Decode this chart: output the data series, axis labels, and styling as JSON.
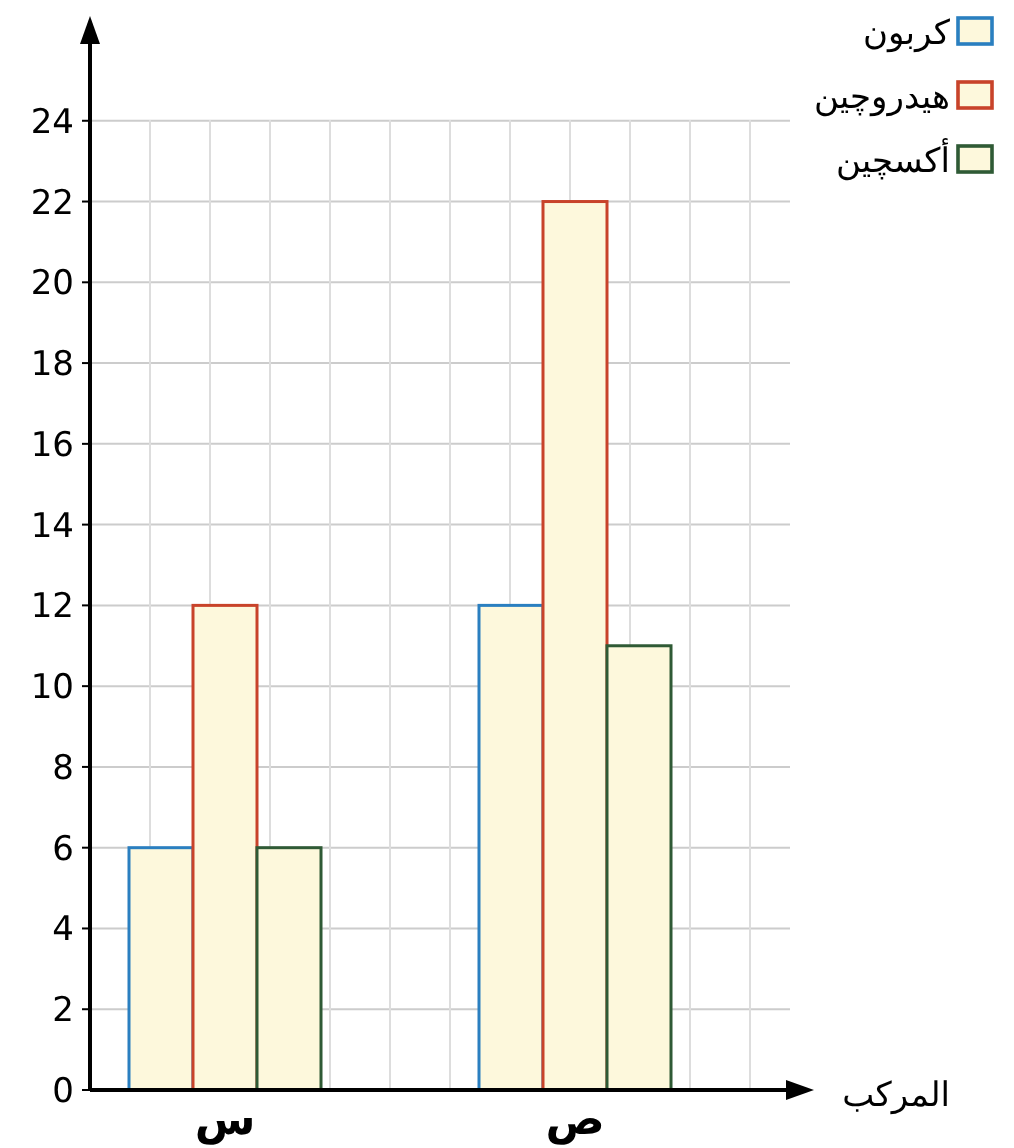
{
  "chart_data": {
    "type": "bar",
    "categories": [
      "س",
      "ص"
    ],
    "xlabel": "المركب",
    "series": [
      {
        "name": "كربون",
        "color": "#2a7fc0",
        "values": [
          6,
          12
        ]
      },
      {
        "name": "هيدروچين",
        "color": "#c8432a",
        "values": [
          12,
          22
        ]
      },
      {
        "name": "أكسچين",
        "color": "#2f5a35",
        "values": [
          6,
          11
        ]
      }
    ],
    "ylim": [
      0,
      26
    ],
    "yticks": [
      0,
      2,
      4,
      6,
      8,
      10,
      12,
      14,
      16,
      18,
      20,
      22,
      24
    ],
    "grid": true,
    "legend": "top right"
  }
}
